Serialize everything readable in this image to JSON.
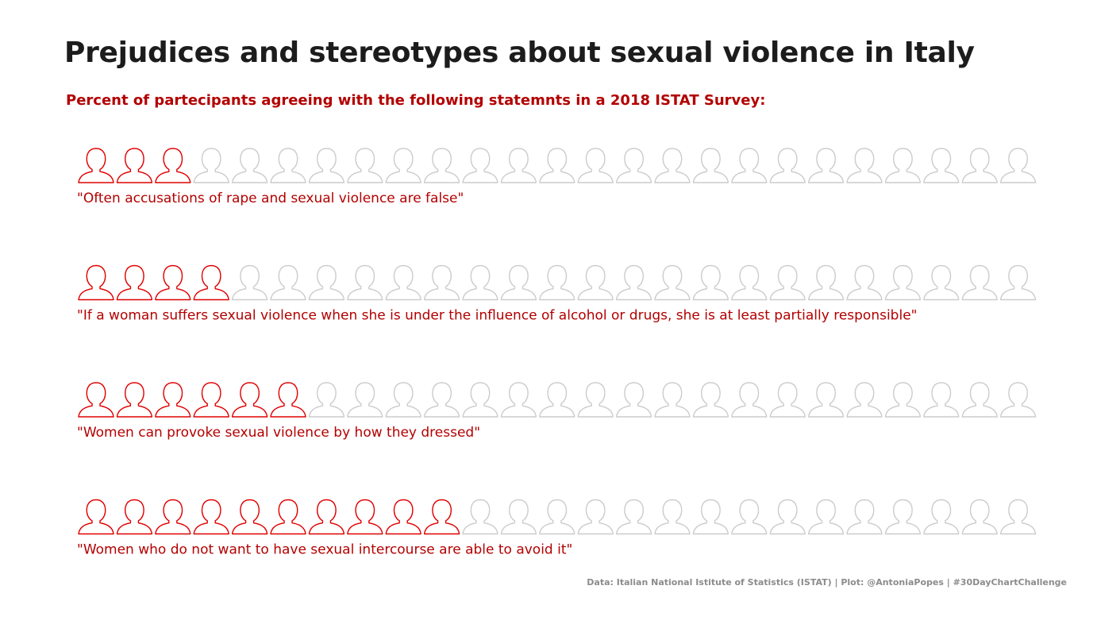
{
  "title": "Prejudices and stereotypes about sexual violence in Italy",
  "subtitle": "Percent of partecipants agreeing with the following statemnts in a 2018 ISTAT Survey:",
  "caption": "Data: Italian National Istitute of Statistics (ISTAT) | Plot: @AntoniaPopes | #30DayChartChallenge",
  "colors": {
    "agree": "#e00000",
    "disagree": "#cccccc",
    "label": "#b30000",
    "title": "#1c1c1c",
    "caption": "#8c8c8c"
  },
  "chart_data": {
    "type": "pictogram",
    "icons_per_row": 25,
    "icon": "person-silhouette-icon",
    "rows": [
      {
        "label": "\"Often accusations of rape and sexual violence are false\"",
        "filled": 3
      },
      {
        "label": "\"If a woman suffers sexual violence when she is under the influence of alcohol or drugs, she is at least partially responsible\"",
        "filled": 4
      },
      {
        "label": "\"Women can provoke sexual violence by how they dressed\"",
        "filled": 6
      },
      {
        "label": "\"Women who do not want to have sexual intercourse are able to avoid it\"",
        "filled": 10
      }
    ]
  }
}
